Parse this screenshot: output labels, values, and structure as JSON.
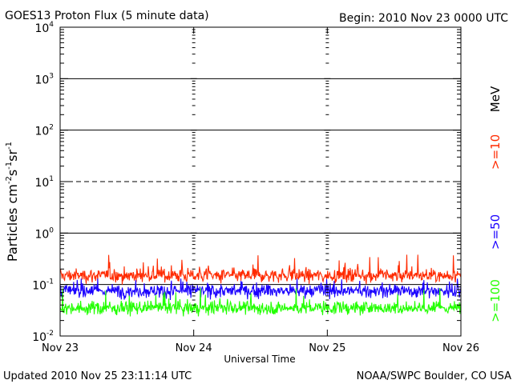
{
  "chart_data": {
    "type": "line",
    "title": "GOES13 Proton Flux (5 minute data)",
    "begin_label": "Begin: 2010 Nov 23 0000 UTC",
    "xlabel": "Universal Time",
    "ylabel_base": "Particles cm",
    "ylabel_exp1": "-2",
    "ylabel_mid1": "s",
    "ylabel_exp2": "-1",
    "ylabel_mid2": "sr",
    "ylabel_exp3": "-1",
    "y_scale": "log",
    "ylim": [
      0.01,
      10000
    ],
    "xlim_days": [
      0,
      3
    ],
    "x_ticks": [
      {
        "day": 0,
        "label": "Nov 23"
      },
      {
        "day": 1,
        "label": "Nov 24"
      },
      {
        "day": 2,
        "label": "Nov 25"
      },
      {
        "day": 3,
        "label": "Nov 26"
      }
    ],
    "y_ticks": [
      {
        "value": 0.01,
        "base": "10",
        "exp": "-2"
      },
      {
        "value": 0.1,
        "base": "10",
        "exp": "-1"
      },
      {
        "value": 1,
        "base": "10",
        "exp": "0"
      },
      {
        "value": 10,
        "base": "10",
        "exp": "1"
      },
      {
        "value": 100,
        "base": "10",
        "exp": "2"
      },
      {
        "value": 1000,
        "base": "10",
        "exp": "3"
      },
      {
        "value": 10000,
        "base": "10",
        "exp": "4"
      }
    ],
    "solid_gridlines": [
      0.1,
      1,
      100,
      1000
    ],
    "dashed_gridlines": [
      10
    ],
    "series": [
      {
        "name": ">=10",
        "legend": ">=10",
        "color": "#ff2a00",
        "mean": 0.15,
        "min": 0.1,
        "max": 0.38
      },
      {
        "name": ">=50",
        "legend": ">=50",
        "color": "#1a00ff",
        "mean": 0.075,
        "min": 0.05,
        "max": 0.13
      },
      {
        "name": ">=100",
        "legend": ">=100",
        "color": "#22ff00",
        "mean": 0.035,
        "min": 0.024,
        "max": 0.085
      }
    ],
    "legend_unit": "MeV",
    "footer_left": "Updated 2010 Nov 25 23:11:14 UTC",
    "footer_right": "NOAA/SWPC Boulder, CO USA"
  }
}
